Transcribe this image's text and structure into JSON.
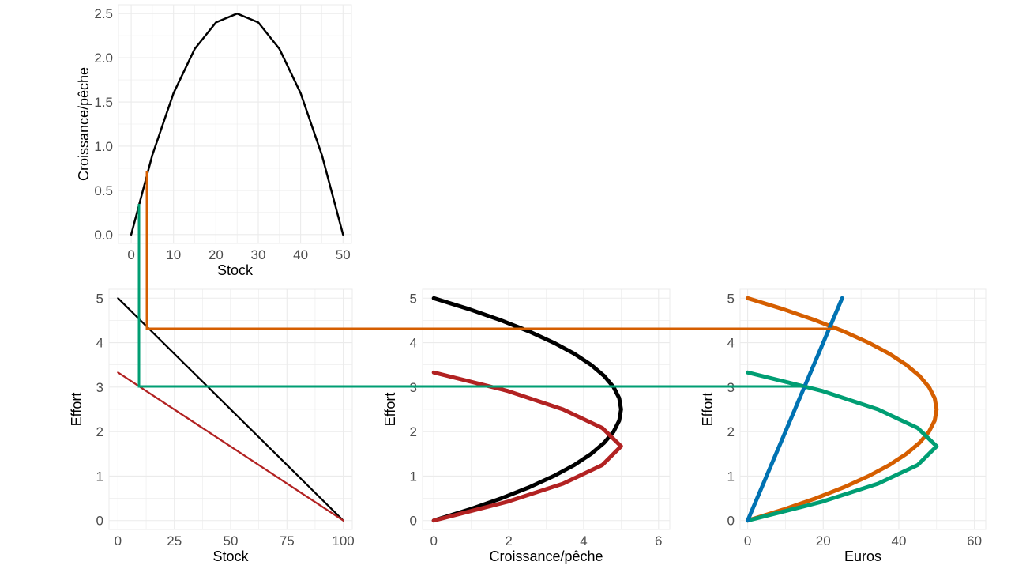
{
  "colors": {
    "black": "#000000",
    "red": "#b22222",
    "orange": "#d55e00",
    "green": "#009e73",
    "blue": "#0072b2",
    "grid": "#ebebeb"
  },
  "chart_data": [
    {
      "type": "line",
      "xlabel": "Stock",
      "ylabel": "Croissance/pêche",
      "xlim": [
        -3,
        52
      ],
      "ylim": [
        -0.1,
        2.6
      ],
      "x_ticks": [
        "0",
        "10",
        "20",
        "30",
        "40",
        "50"
      ],
      "y_ticks": [
        "0.0",
        "0.5",
        "1.0",
        "1.5",
        "2.0",
        "2.5"
      ],
      "series": [
        {
          "color": "black",
          "x": [
            0,
            5,
            10,
            15,
            20,
            25,
            30,
            35,
            40,
            45,
            50
          ],
          "y": [
            0,
            0.9,
            1.6,
            2.1,
            2.4,
            2.5,
            2.4,
            2.1,
            1.6,
            0.9,
            0
          ]
        }
      ]
    },
    {
      "type": "line",
      "xlabel": "Stock",
      "ylabel": "Effort",
      "xlim": [
        -4,
        104
      ],
      "ylim": [
        -0.2,
        5.2
      ],
      "x_ticks": [
        "0",
        "25",
        "50",
        "75",
        "100"
      ],
      "y_ticks": [
        "0",
        "1",
        "2",
        "3",
        "4",
        "5"
      ],
      "series": [
        {
          "color": "black",
          "x": [
            0,
            100
          ],
          "y": [
            5,
            0
          ]
        },
        {
          "color": "red",
          "x": [
            0,
            100
          ],
          "y": [
            3.33,
            0
          ]
        }
      ]
    },
    {
      "type": "line",
      "xlabel": "Croissance/pêche",
      "ylabel": "Effort",
      "xlim": [
        -0.3,
        6.3
      ],
      "ylim": [
        -0.2,
        5.2
      ],
      "x_ticks": [
        "0",
        "2",
        "4",
        "6"
      ],
      "y_ticks": [
        "0",
        "1",
        "2",
        "3",
        "4",
        "5"
      ],
      "series": [
        {
          "color": "black",
          "x": [
            0,
            0.95,
            1.8,
            2.55,
            3.2,
            3.75,
            4.2,
            4.55,
            4.8,
            4.95,
            5.0,
            4.95,
            4.8,
            4.55,
            4.2,
            3.75,
            3.2,
            2.55,
            1.8,
            0.95,
            0
          ],
          "y": [
            0,
            0.25,
            0.5,
            0.75,
            1.0,
            1.25,
            1.5,
            1.75,
            2.0,
            2.25,
            2.5,
            2.75,
            3.0,
            3.25,
            3.5,
            3.75,
            4.0,
            4.25,
            4.5,
            4.75,
            5.0
          ]
        },
        {
          "color": "red",
          "x": [
            0,
            1.95,
            3.45,
            4.5,
            5.0,
            4.5,
            3.45,
            1.95,
            0
          ],
          "y": [
            0,
            0.42,
            0.83,
            1.25,
            1.67,
            2.08,
            2.5,
            2.92,
            3.33
          ]
        }
      ]
    },
    {
      "type": "line",
      "xlabel": "Euros",
      "ylabel": "Effort",
      "xlim": [
        -2,
        63
      ],
      "ylim": [
        -0.2,
        5.2
      ],
      "x_ticks": [
        "0",
        "20",
        "40",
        "60"
      ],
      "y_ticks": [
        "0",
        "1",
        "2",
        "3",
        "4",
        "5"
      ],
      "series": [
        {
          "color": "orange",
          "x": [
            0,
            9.5,
            18,
            25.5,
            32,
            37.5,
            42,
            45.5,
            48,
            49.5,
            50,
            49.5,
            48,
            45.5,
            42,
            37.5,
            32,
            25.5,
            18,
            9.5,
            0
          ],
          "y": [
            0,
            0.25,
            0.5,
            0.75,
            1.0,
            1.25,
            1.5,
            1.75,
            2.0,
            2.25,
            2.5,
            2.75,
            3.0,
            3.25,
            3.5,
            3.75,
            4.0,
            4.25,
            4.5,
            4.75,
            5.0
          ]
        },
        {
          "color": "green",
          "x": [
            0,
            19.5,
            34.5,
            45,
            50,
            45,
            34.5,
            19.5,
            0
          ],
          "y": [
            0,
            0.42,
            0.83,
            1.25,
            1.67,
            2.08,
            2.5,
            2.92,
            3.33
          ]
        },
        {
          "color": "blue",
          "x": [
            0,
            25
          ],
          "y": [
            0,
            5
          ]
        }
      ]
    }
  ]
}
